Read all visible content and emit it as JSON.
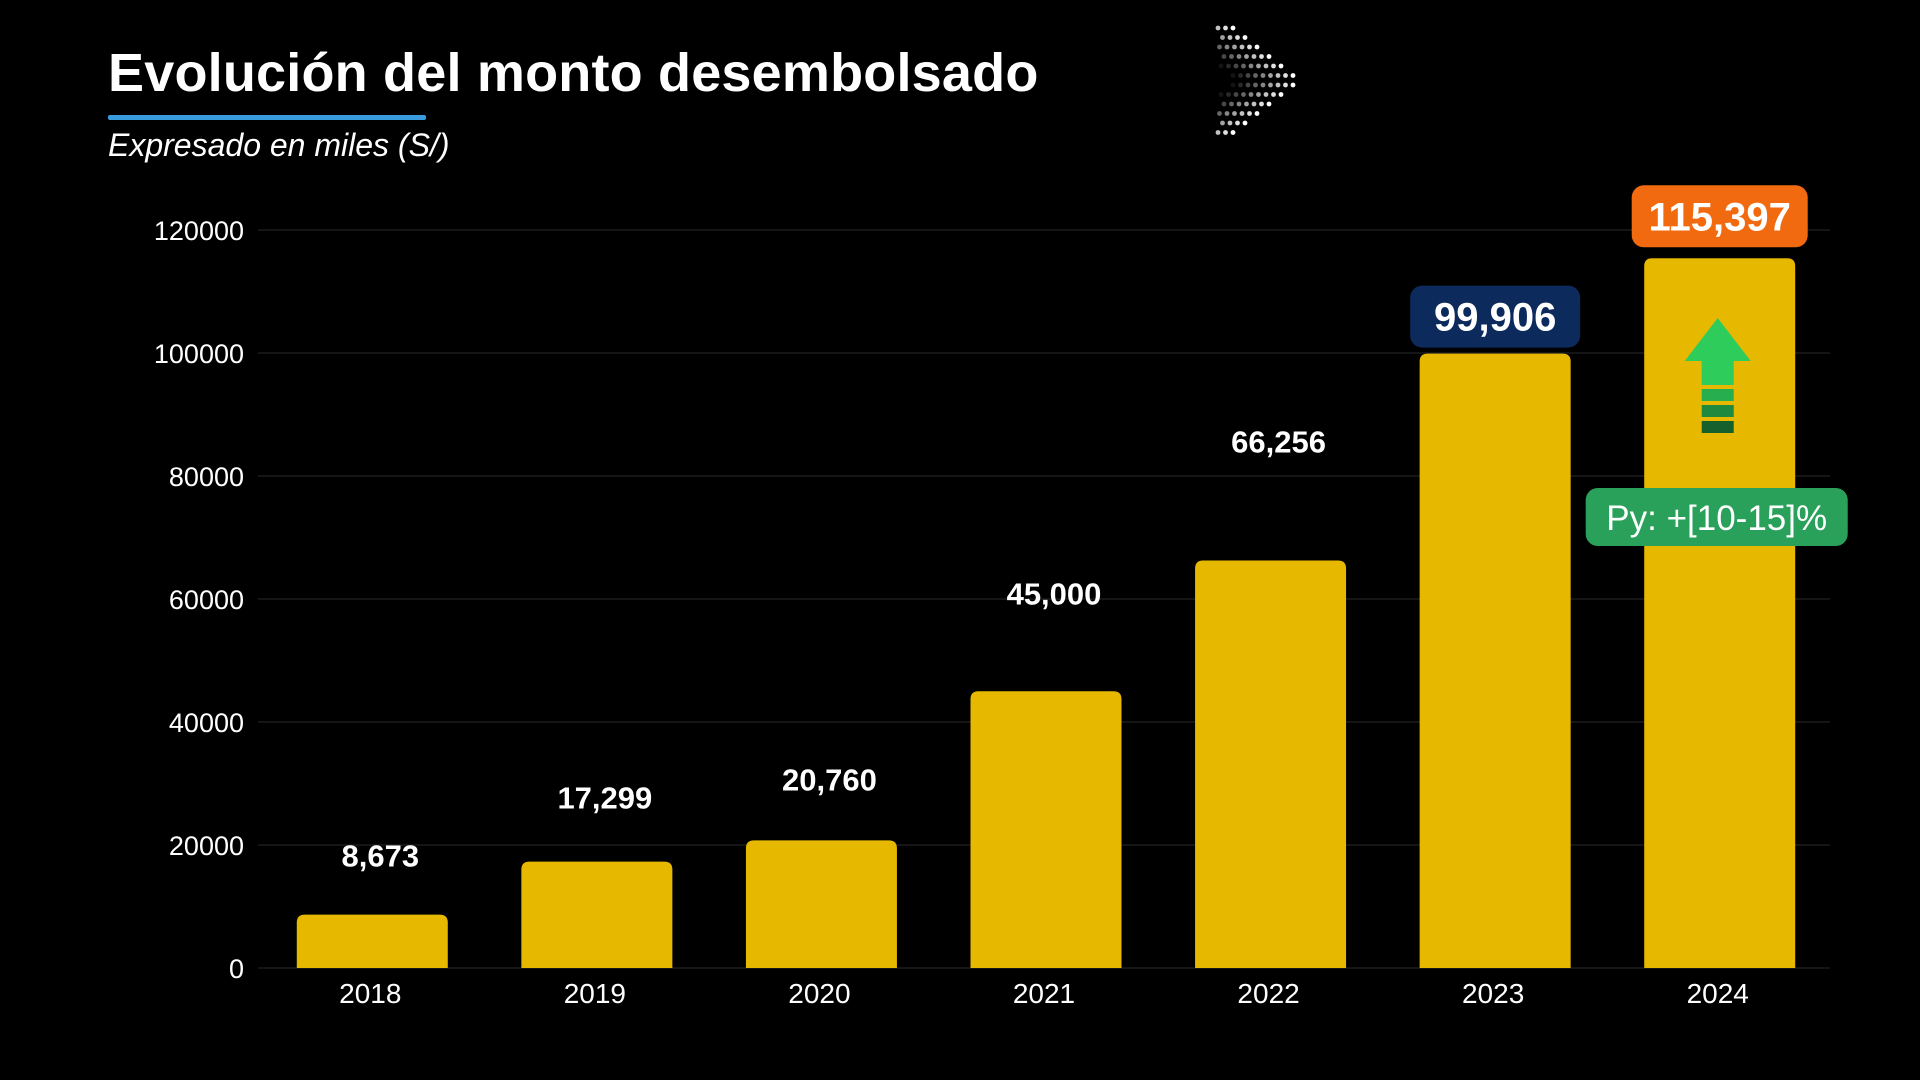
{
  "colors": {
    "background": "#000000",
    "bar": "#e6b800",
    "text": "#ffffff",
    "title_underline": "#3a9bdc",
    "badge_2023": "#0d2a5c",
    "badge_2024": "#f26a10",
    "projection_badge": "#2aa15a",
    "arrow": "#2ecc5a"
  },
  "decor": {
    "chevron_icon": "chevron-right-dotted-icon",
    "growth_icon": "arrow-up-icon"
  },
  "chart_data": {
    "type": "bar",
    "title": "Evolución del monto desembolsado",
    "subtitle": "Expresado en miles (S/)",
    "xlabel": "",
    "ylabel": "",
    "ylim": [
      0,
      120000
    ],
    "grid": true,
    "yticks": [
      "0",
      "20000",
      "40000",
      "60000",
      "80000",
      "100000",
      "120000"
    ],
    "categories": [
      "2018",
      "2019",
      "2020",
      "2021",
      "2022",
      "2023",
      "2024"
    ],
    "values": [
      8673,
      17299,
      20760,
      45000,
      66256,
      99906,
      115397
    ],
    "labels": [
      "8,673",
      "17,299",
      "20,760",
      "45,000",
      "66,256",
      "99,906",
      "115,397"
    ],
    "annotations": [
      {
        "category": "2024",
        "text": "Py: +[10-15]%"
      }
    ]
  }
}
